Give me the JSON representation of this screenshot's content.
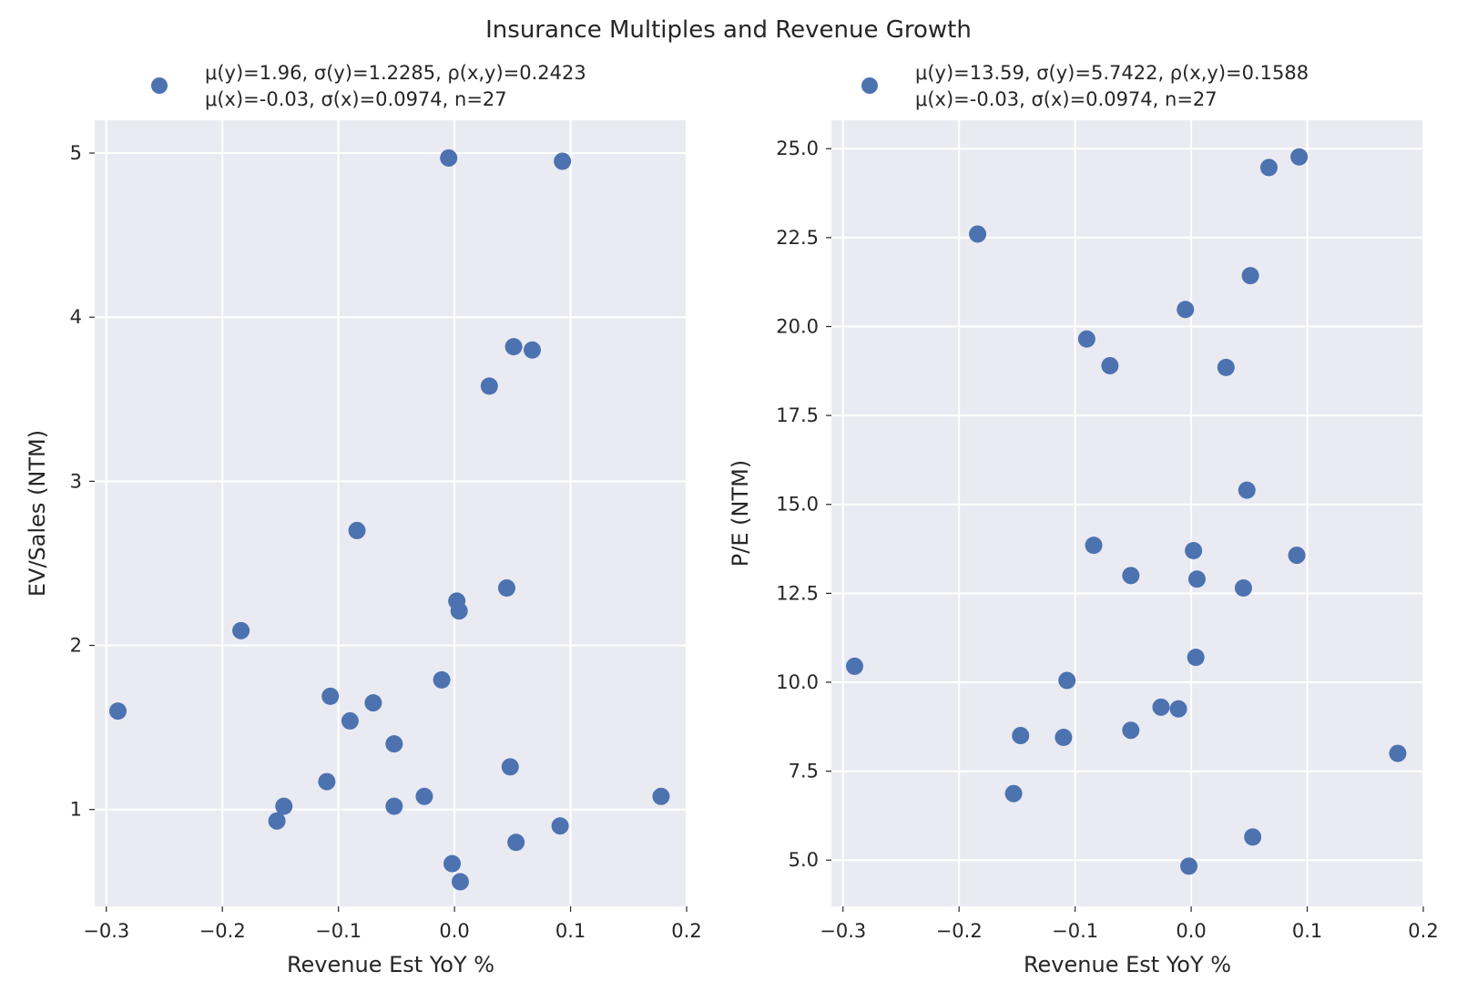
{
  "figure": {
    "title": "Insurance Multiples and Revenue Growth"
  },
  "colors": {
    "point": "#4c72b0",
    "panel_bg": "#eaeaf2",
    "grid": "#ffffff"
  },
  "chart_data": [
    {
      "type": "scatter",
      "xlabel": "Revenue Est YoY %",
      "ylabel": "EV/Sales (NTM)",
      "xlim": [
        -0.31,
        0.2
      ],
      "ylim": [
        0.41,
        5.2
      ],
      "xticks": [
        -0.3,
        -0.2,
        -0.1,
        0.0,
        0.1,
        0.2
      ],
      "xtick_labels": [
        "−0.3",
        "−0.2",
        "−0.1",
        "0.0",
        "0.1",
        "0.2"
      ],
      "yticks": [
        1,
        2,
        3,
        4,
        5
      ],
      "ytick_labels": [
        "1",
        "2",
        "3",
        "4",
        "5"
      ],
      "grid": true,
      "legend": {
        "position": "top",
        "line1": "μ(y)=1.96, σ(y)=1.2285, ρ(x,y)=0.2423",
        "line2": "μ(x)=-0.03, σ(x)=0.0974, n=27"
      },
      "points": [
        {
          "x": -0.29,
          "y": 1.6
        },
        {
          "x": -0.184,
          "y": 2.09
        },
        {
          "x": -0.153,
          "y": 0.93
        },
        {
          "x": -0.147,
          "y": 1.02
        },
        {
          "x": -0.11,
          "y": 1.17
        },
        {
          "x": -0.107,
          "y": 1.69
        },
        {
          "x": -0.09,
          "y": 1.54
        },
        {
          "x": -0.084,
          "y": 2.7
        },
        {
          "x": -0.07,
          "y": 1.65
        },
        {
          "x": -0.052,
          "y": 1.4
        },
        {
          "x": -0.052,
          "y": 1.02
        },
        {
          "x": -0.026,
          "y": 1.08
        },
        {
          "x": -0.011,
          "y": 1.79
        },
        {
          "x": -0.005,
          "y": 4.97
        },
        {
          "x": -0.002,
          "y": 0.67
        },
        {
          "x": 0.002,
          "y": 2.27
        },
        {
          "x": 0.004,
          "y": 2.21
        },
        {
          "x": 0.005,
          "y": 0.56
        },
        {
          "x": 0.03,
          "y": 3.58
        },
        {
          "x": 0.045,
          "y": 2.35
        },
        {
          "x": 0.048,
          "y": 1.26
        },
        {
          "x": 0.051,
          "y": 3.82
        },
        {
          "x": 0.053,
          "y": 0.8
        },
        {
          "x": 0.067,
          "y": 3.8
        },
        {
          "x": 0.091,
          "y": 0.9
        },
        {
          "x": 0.093,
          "y": 4.95
        },
        {
          "x": 0.178,
          "y": 1.08
        }
      ]
    },
    {
      "type": "scatter",
      "xlabel": "Revenue Est YoY %",
      "ylabel": "P/E (NTM)",
      "xlim": [
        -0.31,
        0.2
      ],
      "ylim": [
        3.7,
        25.8
      ],
      "xticks": [
        -0.3,
        -0.2,
        -0.1,
        0.0,
        0.1,
        0.2
      ],
      "xtick_labels": [
        "−0.3",
        "−0.2",
        "−0.1",
        "0.0",
        "0.1",
        "0.2"
      ],
      "yticks": [
        5.0,
        7.5,
        10.0,
        12.5,
        15.0,
        17.5,
        20.0,
        22.5,
        25.0
      ],
      "ytick_labels": [
        "5.0",
        "7.5",
        "10.0",
        "12.5",
        "15.0",
        "17.5",
        "20.0",
        "22.5",
        "25.0"
      ],
      "grid": true,
      "legend": {
        "position": "top",
        "line1": "μ(y)=13.59, σ(y)=5.7422, ρ(x,y)=0.1588",
        "line2": "μ(x)=-0.03, σ(x)=0.0974, n=27"
      },
      "points": [
        {
          "x": -0.29,
          "y": 10.45
        },
        {
          "x": -0.184,
          "y": 22.6
        },
        {
          "x": -0.153,
          "y": 6.87
        },
        {
          "x": -0.147,
          "y": 8.5
        },
        {
          "x": -0.11,
          "y": 8.45
        },
        {
          "x": -0.107,
          "y": 10.05
        },
        {
          "x": -0.09,
          "y": 19.65
        },
        {
          "x": -0.084,
          "y": 13.85
        },
        {
          "x": -0.07,
          "y": 18.9
        },
        {
          "x": -0.052,
          "y": 13.0
        },
        {
          "x": -0.052,
          "y": 8.65
        },
        {
          "x": -0.026,
          "y": 9.3
        },
        {
          "x": -0.011,
          "y": 9.25
        },
        {
          "x": -0.005,
          "y": 20.48
        },
        {
          "x": -0.002,
          "y": 4.83
        },
        {
          "x": 0.002,
          "y": 13.7
        },
        {
          "x": 0.004,
          "y": 10.7
        },
        {
          "x": 0.005,
          "y": 12.9
        },
        {
          "x": 0.03,
          "y": 18.85
        },
        {
          "x": 0.045,
          "y": 12.65
        },
        {
          "x": 0.048,
          "y": 15.4
        },
        {
          "x": 0.051,
          "y": 21.43
        },
        {
          "x": 0.053,
          "y": 5.65
        },
        {
          "x": 0.067,
          "y": 24.47
        },
        {
          "x": 0.091,
          "y": 13.57
        },
        {
          "x": 0.093,
          "y": 24.77
        },
        {
          "x": 0.178,
          "y": 8.0
        }
      ]
    }
  ]
}
